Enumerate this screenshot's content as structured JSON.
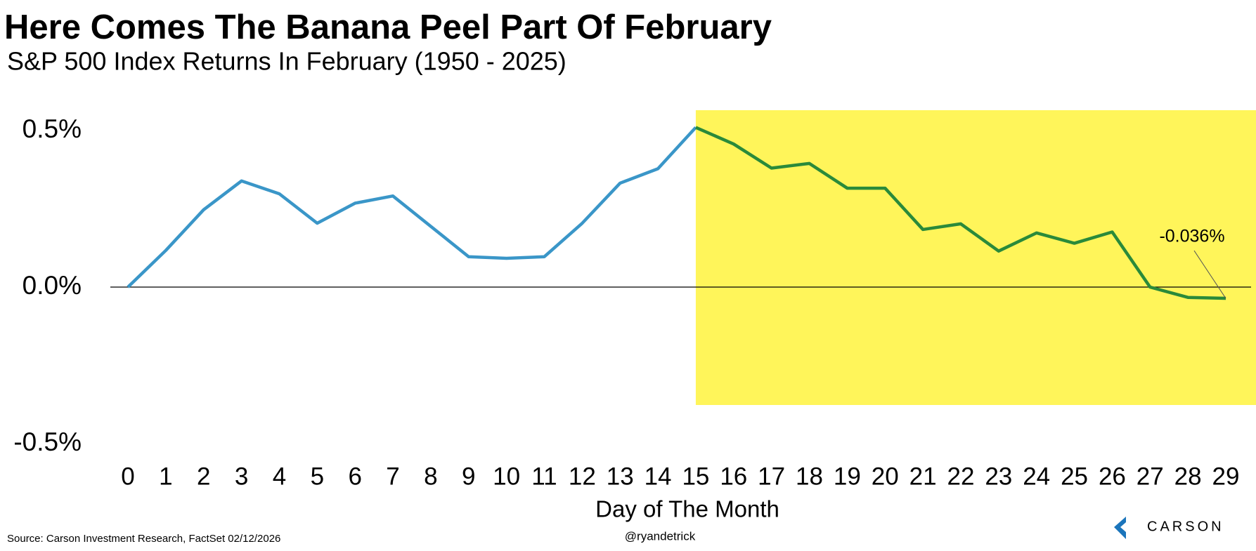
{
  "chart_data": {
    "type": "line",
    "title": "Here Comes The Banana Peel Part Of February",
    "subtitle": "S&P 500 Index Returns In February (1950 - 2025)",
    "x_label": "Day of The Month",
    "x": [
      0,
      1,
      2,
      3,
      4,
      5,
      6,
      7,
      8,
      9,
      10,
      11,
      12,
      13,
      14,
      15,
      16,
      17,
      18,
      19,
      20,
      21,
      22,
      23,
      24,
      25,
      26,
      27,
      28,
      29
    ],
    "values": [
      0,
      0.117,
      0.247,
      0.339,
      0.298,
      0.204,
      0.268,
      0.291,
      0.194,
      0.097,
      0.092,
      0.097,
      0.204,
      0.332,
      0.378,
      0.51,
      0.457,
      0.38,
      0.395,
      0.316,
      0.316,
      0.184,
      0.202,
      0.115,
      0.173,
      0.14,
      0.176,
      0,
      -0.033,
      -0.036
    ],
    "color": "#3a96c8",
    "highlight": {
      "from": 15,
      "fill": "#fff55a",
      "line_color": "#2a8a3a"
    },
    "xlim": [
      0,
      29
    ],
    "xticks": [
      0,
      1,
      2,
      3,
      4,
      5,
      6,
      7,
      8,
      9,
      10,
      11,
      12,
      13,
      14,
      15,
      16,
      17,
      18,
      19,
      20,
      21,
      22,
      23,
      24,
      25,
      26,
      27,
      28,
      29
    ],
    "ylim": [
      -0.5,
      0.5
    ],
    "yticks": [
      {
        "value": 0.5,
        "label": "0.5%"
      },
      {
        "value": 0,
        "label": "0.0%"
      },
      {
        "value": -0.5,
        "label": "-0.5%"
      }
    ],
    "annotations": [
      {
        "x": 29,
        "value": -0.036,
        "text": "-0.036%"
      }
    ],
    "source": "Source: Carson Investment Research, FactSet 02/12/2026",
    "credit": "@ryandetrick",
    "logo_text": "CARSON"
  }
}
